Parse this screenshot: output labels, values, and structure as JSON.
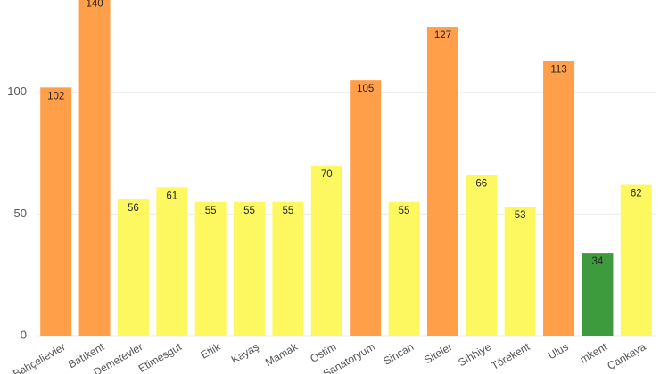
{
  "chart_data": {
    "type": "bar",
    "categories": [
      "Bahçelievler",
      "Batıkent",
      "Demetevler",
      "Etimesgut",
      "Etlik",
      "Kayaş",
      "Mamak",
      "Ostim",
      "Sanatoryum",
      "Sincan",
      "Siteler",
      "Sıhhiye",
      "Törekent",
      "Ulus",
      "mkent",
      "Çankaya"
    ],
    "values": [
      102,
      140,
      56,
      61,
      55,
      55,
      55,
      70,
      105,
      55,
      127,
      66,
      53,
      113,
      34,
      62
    ],
    "colors": [
      "#ff9f4a",
      "#ff9f4a",
      "#fdf860",
      "#fdf860",
      "#fdf860",
      "#fdf860",
      "#fdf860",
      "#fdf860",
      "#ff9f4a",
      "#fdf860",
      "#ff9f4a",
      "#fdf860",
      "#fdf860",
      "#ff9f4a",
      "#3d9a3d",
      "#fdf860"
    ],
    "ylim": [
      0,
      138
    ],
    "yticks": [
      0,
      50,
      100
    ],
    "grid": true
  }
}
